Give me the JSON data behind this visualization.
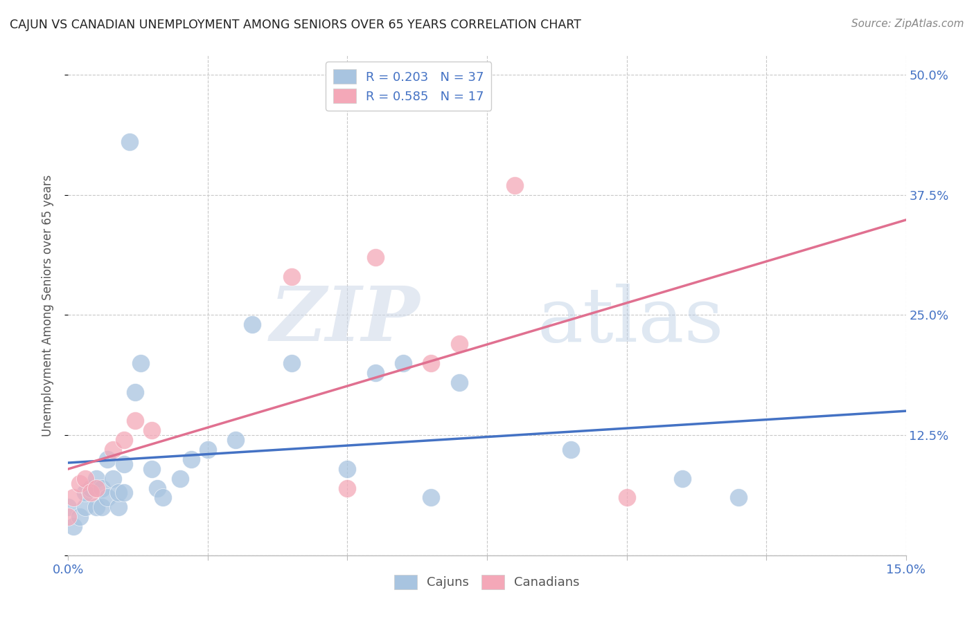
{
  "title": "CAJUN VS CANADIAN UNEMPLOYMENT AMONG SENIORS OVER 65 YEARS CORRELATION CHART",
  "source": "Source: ZipAtlas.com",
  "ylabel": "Unemployment Among Seniors over 65 years",
  "xlim": [
    0.0,
    0.15
  ],
  "ylim": [
    0.0,
    0.52
  ],
  "xticks": [
    0.0,
    0.025,
    0.05,
    0.075,
    0.1,
    0.125,
    0.15
  ],
  "xticklabels": [
    "0.0%",
    "",
    "",
    "",
    "",
    "",
    "15.0%"
  ],
  "yticks": [
    0.0,
    0.125,
    0.25,
    0.375,
    0.5
  ],
  "yticklabels": [
    "",
    "12.5%",
    "25.0%",
    "37.5%",
    "50.0%"
  ],
  "cajun_R": 0.203,
  "cajun_N": 37,
  "canadian_R": 0.585,
  "canadian_N": 17,
  "cajun_color": "#a8c4e0",
  "canadian_color": "#f4a8b8",
  "cajun_line_color": "#4472c4",
  "canadian_line_color": "#e07090",
  "watermark_zip": "ZIP",
  "watermark_atlas": "atlas",
  "cajun_x": [
    0.0,
    0.001,
    0.002,
    0.003,
    0.003,
    0.004,
    0.005,
    0.005,
    0.006,
    0.006,
    0.007,
    0.007,
    0.008,
    0.009,
    0.009,
    0.01,
    0.01,
    0.011,
    0.012,
    0.013,
    0.015,
    0.016,
    0.017,
    0.02,
    0.022,
    0.025,
    0.03,
    0.033,
    0.04,
    0.05,
    0.055,
    0.06,
    0.065,
    0.07,
    0.09,
    0.11,
    0.12
  ],
  "cajun_y": [
    0.05,
    0.03,
    0.04,
    0.05,
    0.065,
    0.07,
    0.05,
    0.08,
    0.05,
    0.07,
    0.06,
    0.1,
    0.08,
    0.05,
    0.065,
    0.065,
    0.095,
    0.43,
    0.17,
    0.2,
    0.09,
    0.07,
    0.06,
    0.08,
    0.1,
    0.11,
    0.12,
    0.24,
    0.2,
    0.09,
    0.19,
    0.2,
    0.06,
    0.18,
    0.11,
    0.08,
    0.06
  ],
  "canadian_x": [
    0.0,
    0.001,
    0.002,
    0.003,
    0.004,
    0.005,
    0.008,
    0.01,
    0.012,
    0.015,
    0.04,
    0.05,
    0.055,
    0.065,
    0.07,
    0.08,
    0.1
  ],
  "canadian_y": [
    0.04,
    0.06,
    0.075,
    0.08,
    0.065,
    0.07,
    0.11,
    0.12,
    0.14,
    0.13,
    0.29,
    0.07,
    0.31,
    0.2,
    0.22,
    0.385,
    0.06
  ]
}
